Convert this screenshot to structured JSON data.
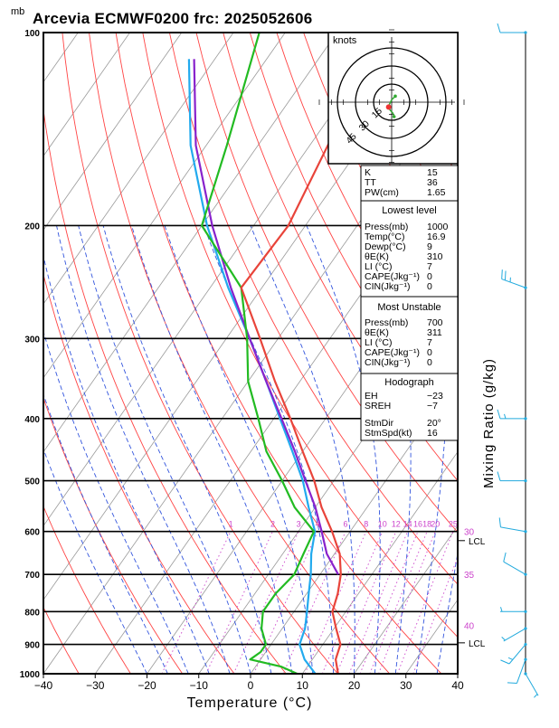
{
  "title": "Arcevia ECMWF0200 frc: 2025052606",
  "unit_top": "mb",
  "colors": {
    "temperature": "#e8443a",
    "dewpoint": "#22bb22",
    "parcel": "#8822cc",
    "wetbulb": "#22aaee",
    "dry_adiabat": "#ff4444",
    "moist_adiabat": "#3355dd",
    "isotherm": "#999999",
    "mixing_ratio": "#cc44cc",
    "hodograph": "#33aa33",
    "wind_barb": "#22aadd"
  },
  "chart_data": {
    "type": "line",
    "subtype": "skew-T log-p",
    "xlabel": "Temperature (°C)",
    "ylabel_right": "Mixing Ratio (g/kg)",
    "xlim": [
      -40,
      40
    ],
    "ylim_mb": [
      1000,
      100
    ],
    "x_ticks": [
      -40,
      -30,
      -20,
      -10,
      0,
      10,
      20,
      30,
      40
    ],
    "pressure_levels": [
      100,
      200,
      300,
      400,
      500,
      600,
      700,
      800,
      900,
      1000
    ],
    "mixing_ratio_labels": [
      "1",
      "2",
      "3",
      "4",
      "6",
      "8",
      "10",
      "12",
      "14",
      "16",
      "18",
      "20",
      "25",
      "30"
    ],
    "mixing_ratio_values": [
      1,
      2,
      3,
      4,
      6,
      8,
      10,
      12,
      14,
      16,
      18,
      20,
      25,
      30
    ],
    "moist_adiabat_labels": [
      {
        "value": "30",
        "p": 600
      },
      {
        "value": "35",
        "p": 700
      },
      {
        "value": "40",
        "p": 840
      }
    ],
    "lcl_labels": [
      "LCL",
      "LCL"
    ],
    "lcl_levels_mb": [
      620,
      895
    ],
    "series": [
      {
        "name": "temperature",
        "p": [
          1000,
          950,
          900,
          850,
          800,
          750,
          700,
          650,
          600,
          550,
          500,
          450,
          400,
          350,
          300,
          250,
          200,
          150,
          100
        ],
        "t": [
          16.9,
          14.5,
          13.4,
          10.4,
          7.4,
          6.0,
          4.0,
          1.0,
          -3.5,
          -8.8,
          -13.8,
          -20.0,
          -26.8,
          -34.8,
          -43.5,
          -54.0,
          -53.3,
          -56.5,
          -60.5
        ]
      },
      {
        "name": "dewpoint",
        "p": [
          1000,
          975,
          950,
          925,
          900,
          850,
          800,
          750,
          700,
          650,
          600,
          550,
          500,
          450,
          400,
          350,
          300,
          250,
          200,
          150,
          100
        ],
        "t": [
          9,
          5,
          -2,
          -1,
          -1,
          -4,
          -6,
          -6,
          -5,
          -6,
          -7,
          -14,
          -20,
          -27,
          -33,
          -40,
          -46,
          -54,
          -70,
          -76,
          -85
        ]
      },
      {
        "name": "parcel",
        "p": [
          700,
          650,
          600,
          550,
          500,
          450,
          400,
          350,
          300,
          250,
          200,
          150,
          110
        ],
        "t": [
          3.5,
          -1.5,
          -5.5,
          -10,
          -15.5,
          -21.5,
          -28.5,
          -36.5,
          -45.5,
          -56,
          -68,
          -82,
          -94
        ]
      },
      {
        "name": "wetbulb",
        "p": [
          1000,
          950,
          900,
          850,
          800,
          750,
          700,
          650,
          600,
          550,
          500,
          450,
          400,
          350,
          300,
          250,
          200,
          150,
          110
        ],
        "t": [
          12.5,
          8.5,
          5.5,
          4.4,
          2.5,
          0.4,
          -1.8,
          -4.5,
          -6.8,
          -11.3,
          -16,
          -22,
          -28.8,
          -36.5,
          -45.5,
          -56.5,
          -69,
          -83,
          -95
        ]
      }
    ],
    "winds": [
      {
        "p": 1000,
        "dir": 150,
        "spd": 5
      },
      {
        "p": 950,
        "dir": 200,
        "spd": 10
      },
      {
        "p": 900,
        "dir": 220,
        "spd": 15
      },
      {
        "p": 850,
        "dir": 240,
        "spd": 5
      },
      {
        "p": 800,
        "dir": 270,
        "spd": 5
      },
      {
        "p": 700,
        "dir": 300,
        "spd": 10
      },
      {
        "p": 600,
        "dir": 280,
        "spd": 10
      },
      {
        "p": 500,
        "dir": 270,
        "spd": 10
      },
      {
        "p": 400,
        "dir": 270,
        "spd": 15
      },
      {
        "p": 250,
        "dir": 290,
        "spd": 25
      },
      {
        "p": 100,
        "dir": 270,
        "spd": 10
      }
    ],
    "hodograph": {
      "unit_label": "knots",
      "ring_labels": [
        "15",
        "30",
        "45"
      ],
      "trace_u": [
        2,
        1,
        -1,
        -3,
        -2,
        -1,
        0,
        2,
        3
      ],
      "trace_v": [
        -12,
        -9,
        -7,
        -4,
        -2,
        0,
        2,
        4,
        5
      ],
      "storm_marker_u": -2.5,
      "storm_marker_v": -4
    }
  },
  "indices_table": {
    "top": [
      {
        "label": "K",
        "value": "15"
      },
      {
        "label": "TT",
        "value": "36"
      },
      {
        "label": "PW(cm)",
        "value": "1.65"
      }
    ],
    "lowest_level": {
      "heading": "Lowest level",
      "rows": [
        {
          "label": "Press(mb)",
          "value": "1000"
        },
        {
          "label": "Temp(°C)",
          "value": "16.9"
        },
        {
          "label": "Dewp(°C)",
          "value": "9"
        },
        {
          "label": "θE(K)",
          "value": "310"
        },
        {
          "label": "LI (°C)",
          "value": "7"
        },
        {
          "label": "CAPE(Jkg⁻¹)",
          "value": "0"
        },
        {
          "label": "CIN(Jkg⁻¹)",
          "value": "0"
        }
      ]
    },
    "most_unstable": {
      "heading": "Most Unstable",
      "rows": [
        {
          "label": "Press(mb)",
          "value": "700"
        },
        {
          "label": "θE(K)",
          "value": "311"
        },
        {
          "label": "LI (°C)",
          "value": "7"
        },
        {
          "label": "CAPE(Jkg⁻¹)",
          "value": "0"
        },
        {
          "label": "CIN(Jkg⁻¹)",
          "value": "0"
        }
      ]
    },
    "hodograph_block": {
      "heading": "Hodograph",
      "rows": [
        {
          "label": "EH",
          "value": "−23"
        },
        {
          "label": "SREH",
          "value": "−7"
        },
        {
          "label": "StmDir",
          "value": "20°"
        },
        {
          "label": "StmSpd(kt)",
          "value": "16"
        }
      ]
    }
  }
}
